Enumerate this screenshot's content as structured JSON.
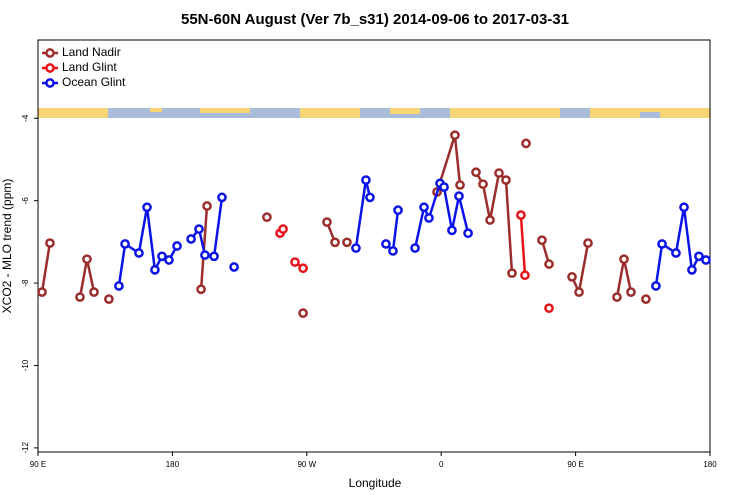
{
  "chart_data": {
    "type": "line",
    "title": "55N-60N August (Ver 7b_s31)   2014-09-06 to 2017-03-31",
    "xlabel": "Longitude",
    "ylabel": "XCO2 - MLO trend (ppm)",
    "xlim": [
      90,
      540
    ],
    "xticks": [
      {
        "value": 90,
        "label": "90 E"
      },
      180,
      {
        "value": 270,
        "label": "90 W"
      },
      {
        "value": 360,
        "label": "0"
      },
      {
        "value": 450,
        "label": "90 E"
      },
      {
        "value": 540,
        "label": "180"
      }
    ],
    "ylim": [
      -12.1,
      -2.1
    ],
    "yticks": [
      -4,
      -6,
      -8,
      -10,
      -12
    ],
    "legend": "top-left",
    "series": [
      {
        "name": "Land Nadir",
        "color": "#9b2d2d",
        "x": [
          92.7,
          98.0,
          null,
          118.1,
          122.8,
          127.5,
          null,
          137.5,
          null,
          199.2,
          203.2,
          null,
          243.3,
          null,
          267.5,
          null,
          283.5,
          288.9,
          null,
          296.9,
          null,
          357.2,
          369.2,
          372.6,
          null,
          383.3,
          388.0,
          392.7,
          398.7,
          403.4,
          407.4,
          null,
          416.8,
          null,
          427.5,
          432.2,
          null,
          447.6,
          452.3,
          458.3,
          null,
          477.7,
          482.4,
          487.1,
          null,
          497.1
        ],
        "values": [
          -8.22,
          -7.03,
          null,
          -8.34,
          -7.42,
          -8.22,
          null,
          -8.39,
          null,
          -8.15,
          -6.13,
          null,
          -6.4,
          null,
          -8.73,
          null,
          -6.52,
          -7.01,
          null,
          -7.01,
          null,
          -5.79,
          -4.41,
          -5.62,
          null,
          -5.31,
          -5.6,
          -6.47,
          -5.33,
          -5.5,
          -7.76,
          null,
          -4.61,
          null,
          -6.96,
          -7.54,
          null,
          -7.85,
          -8.22,
          -7.03,
          null,
          -8.34,
          -7.42,
          -8.22,
          null,
          -8.39
        ]
      },
      {
        "name": "Land Glint",
        "color": "#e8141b",
        "x": [
          252.1,
          254.1,
          null,
          262.1,
          267.5,
          null,
          413.4,
          416.1,
          null,
          432.2
        ],
        "values": [
          -6.79,
          -6.69,
          null,
          -7.49,
          -7.64,
          null,
          -6.35,
          -7.81,
          null,
          -8.61
        ]
      },
      {
        "name": "Ocean Glint",
        "color": "#0a14e6",
        "x": [
          144.2,
          148.3,
          157.6,
          163.0,
          168.3,
          173.0,
          177.7,
          183.1,
          null,
          192.5,
          197.8,
          201.8,
          207.9,
          213.2,
          null,
          221.3,
          null,
          302.9,
          309.6,
          312.3,
          null,
          323.0,
          327.7,
          331.1,
          null,
          342.5,
          348.5,
          351.8,
          359.2,
          361.9,
          367.2,
          371.9,
          378.0,
          null,
          503.8,
          507.9,
          517.2,
          522.6,
          527.9,
          532.6,
          537.3
        ],
        "values": [
          -8.07,
          -7.05,
          -7.27,
          -6.16,
          -7.68,
          -7.35,
          -7.44,
          -7.1,
          null,
          -6.93,
          -6.69,
          -7.32,
          -7.35,
          -5.92,
          null,
          -7.61,
          null,
          -7.15,
          -5.5,
          -5.92,
          null,
          -7.05,
          -7.22,
          -6.23,
          null,
          -7.15,
          -6.16,
          -6.42,
          -5.58,
          -5.67,
          -6.72,
          -5.89,
          -6.79,
          null,
          -8.07,
          -7.05,
          -7.27,
          -6.16,
          -7.68,
          -7.35,
          -7.44
        ]
      }
    ]
  }
}
